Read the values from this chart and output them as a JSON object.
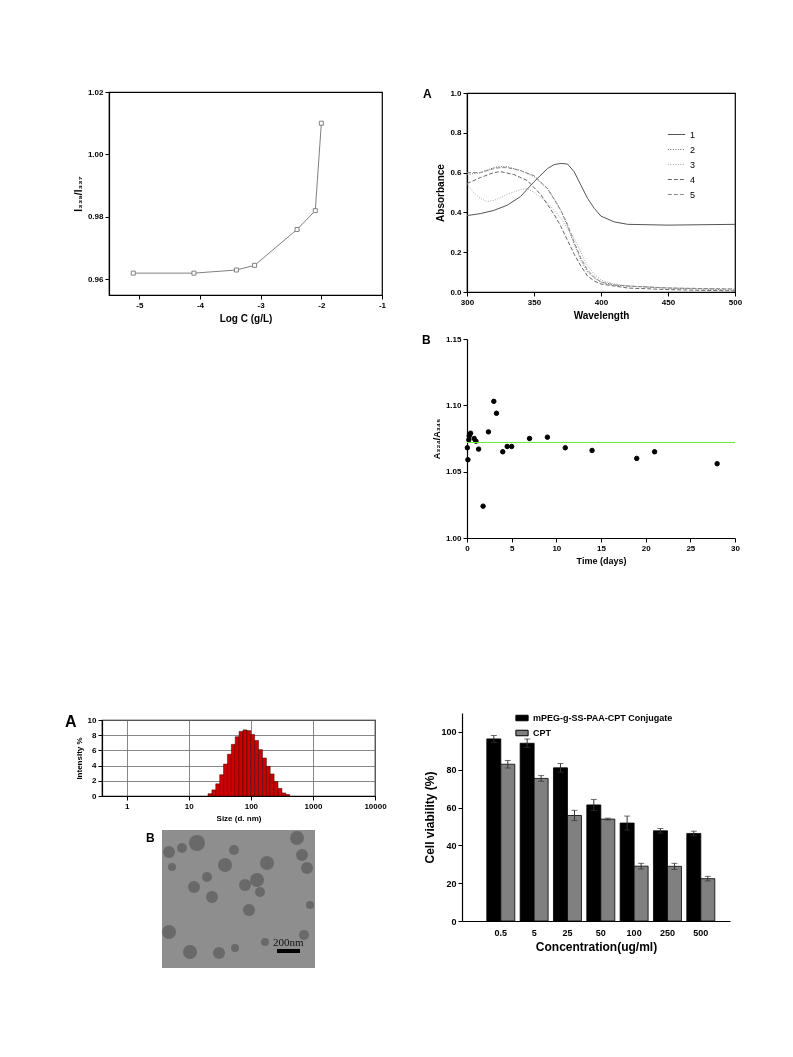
{
  "chart_data": [
    {
      "type": "line",
      "xlabel": "Log C (g/L)",
      "ylabel": "I₃₃₉/I₃₃₇",
      "x": [
        -5.1,
        -4.1,
        -3.4,
        -3.1,
        -2.4,
        -2.1,
        -2.0
      ],
      "values": [
        0.962,
        0.962,
        0.963,
        0.9645,
        0.976,
        0.982,
        1.01
      ],
      "color": "#808080",
      "marker": "square",
      "xlim": [
        -5.5,
        -1
      ],
      "xticks": [
        -5,
        -4,
        -3,
        -2,
        -1
      ],
      "ylim": [
        0.955,
        1.02
      ],
      "yticks": [
        0.96,
        0.98,
        {
          "value": 1,
          "label": "1.00"
        },
        1.02
      ]
    },
    {
      "type": "line",
      "title": "A",
      "xlabel": "Wavelength",
      "ylabel": "Absorbance",
      "legend": "top right",
      "xlim": [
        300,
        500
      ],
      "xticks": [
        300,
        350,
        400,
        450,
        500
      ],
      "ylim": [
        0,
        1
      ],
      "yticks": [
        {
          "value": 0,
          "label": "0.0"
        },
        0.2,
        0.4,
        0.6,
        0.8,
        {
          "value": 1,
          "label": "1.0"
        }
      ],
      "series": [
        {
          "name": "1",
          "color": "#555555",
          "line_style": "solid",
          "x": [
            300,
            310,
            320,
            330,
            340,
            350,
            360,
            365,
            370,
            375,
            380,
            385,
            390,
            395,
            400,
            410,
            420,
            450,
            500
          ],
          "values": [
            0.384,
            0.394,
            0.41,
            0.436,
            0.48,
            0.554,
            0.62,
            0.64,
            0.646,
            0.643,
            0.604,
            0.537,
            0.47,
            0.42,
            0.381,
            0.352,
            0.34,
            0.336,
            0.34
          ]
        },
        {
          "name": "2",
          "color": "#666666",
          "line_style": "dotted",
          "x": [
            300,
            310,
            320,
            325,
            330,
            340,
            350,
            360,
            365,
            370,
            375,
            380,
            385,
            390,
            395,
            400,
            410,
            420,
            450,
            500
          ],
          "values": [
            0.59,
            0.6,
            0.625,
            0.63,
            0.63,
            0.61,
            0.58,
            0.52,
            0.47,
            0.41,
            0.33,
            0.24,
            0.16,
            0.1,
            0.07,
            0.05,
            0.035,
            0.03,
            0.02,
            0.01
          ]
        },
        {
          "name": "3",
          "color": "#aaaaaa",
          "line_style": "dotted",
          "x": [
            300,
            305,
            310,
            315,
            320,
            330,
            340,
            345,
            350,
            360,
            370,
            375,
            380,
            385,
            390,
            395,
            400,
            410,
            420,
            450,
            500
          ],
          "values": [
            0.54,
            0.5,
            0.47,
            0.455,
            0.46,
            0.49,
            0.515,
            0.52,
            0.5,
            0.45,
            0.37,
            0.32,
            0.27,
            0.2,
            0.13,
            0.09,
            0.06,
            0.04,
            0.03,
            0.02,
            0.015
          ]
        },
        {
          "name": "4",
          "color": "#666666",
          "line_style": "dashed",
          "x": [
            300,
            310,
            320,
            325,
            335,
            345,
            355,
            365,
            370,
            375,
            380,
            385,
            390,
            395,
            400,
            410,
            420,
            450,
            500
          ],
          "values": [
            0.545,
            0.575,
            0.6,
            0.605,
            0.59,
            0.56,
            0.49,
            0.39,
            0.33,
            0.26,
            0.19,
            0.13,
            0.08,
            0.055,
            0.04,
            0.03,
            0.02,
            0.012,
            0.005
          ]
        },
        {
          "name": "5",
          "color": "#888888",
          "line_style": "dashed",
          "x": [
            300,
            310,
            320,
            325,
            330,
            340,
            350,
            360,
            370,
            375,
            380,
            385,
            390,
            395,
            400,
            410,
            420,
            450,
            500
          ],
          "values": [
            0.6,
            0.6,
            0.62,
            0.625,
            0.625,
            0.61,
            0.585,
            0.52,
            0.41,
            0.34,
            0.25,
            0.17,
            0.11,
            0.075,
            0.05,
            0.035,
            0.03,
            0.02,
            0.015
          ]
        }
      ]
    },
    {
      "type": "scatter",
      "title": "B",
      "xlabel": "Time (days)",
      "ylabel": "A₃₂₄/A₃₄₅",
      "x": [
        0.04,
        0.1,
        0.2,
        0.25,
        0.3,
        0.4,
        0.8,
        1,
        1.3,
        1.8,
        2.4,
        3,
        3.3,
        4,
        4.5,
        5,
        7,
        9,
        11,
        14,
        19,
        21,
        28
      ],
      "values": [
        1.068,
        1.059,
        1.074,
        1.077,
        1.078,
        1.079,
        1.075,
        1.073,
        1.067,
        1.024,
        1.08,
        1.103,
        1.094,
        1.065,
        1.069,
        1.069,
        1.075,
        1.076,
        1.068,
        1.066,
        1.06,
        1.065,
        1.056
      ],
      "color": "#000000",
      "marker": "circle",
      "xlim": [
        0,
        30
      ],
      "xticks": [
        0,
        5,
        10,
        15,
        20,
        25,
        30
      ],
      "ylim": [
        1.0,
        1.15
      ],
      "yticks": [
        {
          "value": 1,
          "label": "1.00"
        },
        1.05,
        {
          "value": 1.1,
          "label": "1.10"
        },
        1.15
      ],
      "ref_lines": [
        {
          "axis": "y",
          "value": 1.072,
          "color": "#66ee33"
        }
      ]
    },
    {
      "type": "histogram",
      "title": "A",
      "xlabel": "Size (d. nm)",
      "ylabel": "Intensity %",
      "bins": [
        20.4,
        23.6,
        27.2,
        31.5,
        36.3,
        42.0,
        48.5,
        56.0,
        64.7,
        74.8,
        86.4,
        99.8,
        115,
        133,
        154,
        178,
        205,
        237,
        274,
        317,
        366,
        423
      ],
      "values": [
        0.3,
        0.8,
        1.6,
        2.8,
        4.2,
        5.5,
        6.8,
        7.8,
        8.5,
        8.7,
        8.6,
        8.1,
        7.3,
        6.1,
        5.0,
        3.9,
        2.9,
        1.9,
        1.0,
        0.4,
        0.2
      ],
      "color": "#cc0000",
      "log": "x",
      "grid": true,
      "xlim": [
        0.4,
        10000
      ],
      "xticks": [
        1,
        10,
        100,
        1000,
        10000
      ],
      "ylim": [
        0,
        10
      ],
      "yticks": [
        0,
        2,
        4,
        6,
        8,
        10
      ]
    },
    {
      "type": "other",
      "title": "B",
      "annotations": [
        "200nm"
      ]
    },
    {
      "type": "bar",
      "xlabel": "Concentration(ug/ml)",
      "ylabel": "Cell viability (%)",
      "legend": "top",
      "categories": [
        "0.5",
        "5",
        "25",
        "50",
        "100",
        "250",
        "500"
      ],
      "ylim": [
        0,
        110
      ],
      "yticks": [
        0,
        20,
        40,
        60,
        80,
        100
      ],
      "series": [
        {
          "name": "mPEG-g-SS-PAA-CPT Conjugate",
          "color": "#000000",
          "values": [
            96.3,
            94.0,
            81.0,
            61.4,
            51.8,
            47.7,
            46.3
          ],
          "errors": [
            1.8,
            2.3,
            2.3,
            2.9,
            3.7,
            1.2,
            1.2
          ]
        },
        {
          "name": "CPT",
          "color": "#808080",
          "values": [
            82.9,
            75.4,
            55.8,
            53.9,
            29.0,
            28.9,
            22.4
          ],
          "errors": [
            2.0,
            1.5,
            2.7,
            0.5,
            1.5,
            1.6,
            1.2
          ]
        }
      ]
    }
  ]
}
